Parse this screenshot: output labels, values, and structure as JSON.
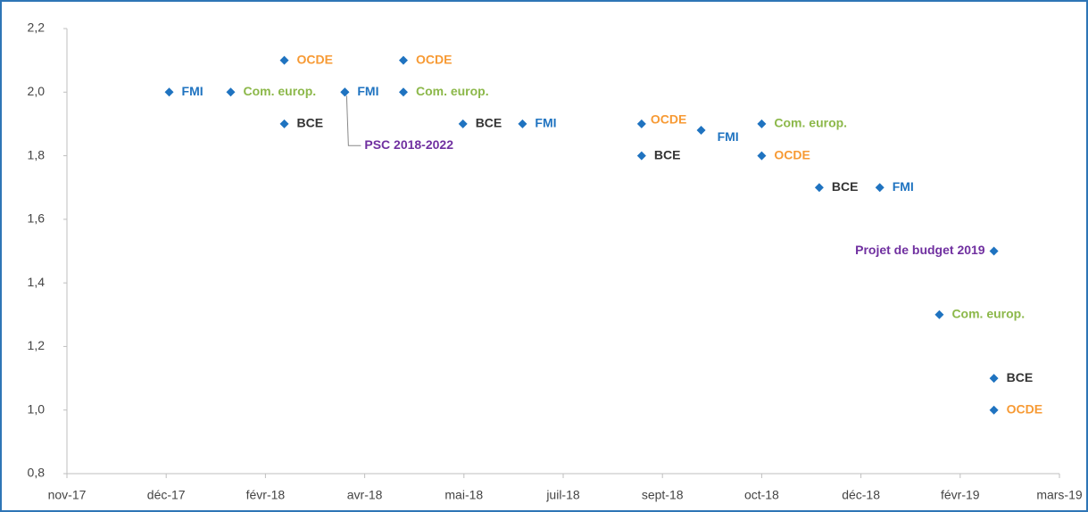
{
  "chart_data": {
    "type": "scatter",
    "marker_color": "#1f73c0",
    "xlim": [
      0,
      10
    ],
    "xticks": [
      {
        "value": 0,
        "label": "nov-17"
      },
      {
        "value": 1,
        "label": "déc-17"
      },
      {
        "value": 2,
        "label": "févr-18"
      },
      {
        "value": 3,
        "label": "avr-18"
      },
      {
        "value": 4,
        "label": "mai-18"
      },
      {
        "value": 5,
        "label": "juil-18"
      },
      {
        "value": 6,
        "label": "sept-18"
      },
      {
        "value": 7,
        "label": "oct-18"
      },
      {
        "value": 8,
        "label": "déc-18"
      },
      {
        "value": 9,
        "label": "févr-19"
      },
      {
        "value": 10,
        "label": "mars-19"
      }
    ],
    "ylim": [
      0.8,
      2.2
    ],
    "yticks": [
      {
        "value": 0.8,
        "label": "0,8"
      },
      {
        "value": 1.0,
        "label": "1,0"
      },
      {
        "value": 1.2,
        "label": "1,2"
      },
      {
        "value": 1.4,
        "label": "1,4"
      },
      {
        "value": 1.6,
        "label": "1,6"
      },
      {
        "value": 1.8,
        "label": "1,8"
      },
      {
        "value": 2.0,
        "label": "2,0"
      },
      {
        "value": 2.2,
        "label": "2,2"
      }
    ],
    "grid": false,
    "series": [
      {
        "name": "FMI",
        "color": "#1f73c0",
        "x": [
          1.03,
          2.8,
          4.59,
          6.39,
          8.19
        ],
        "values": [
          2.0,
          2.0,
          1.9,
          1.88,
          1.7
        ]
      },
      {
        "name": "OCDE",
        "color": "#f79a34",
        "x": [
          2.19,
          3.39,
          5.79,
          7.0,
          9.34
        ],
        "values": [
          2.1,
          2.1,
          1.9,
          1.8,
          1.0
        ]
      },
      {
        "name": "Com. europ.",
        "color": "#8cb84a",
        "x": [
          1.65,
          3.39,
          7.0,
          8.79
        ],
        "values": [
          2.0,
          2.0,
          1.9,
          1.3
        ]
      },
      {
        "name": "BCE",
        "color": "#333333",
        "x": [
          2.19,
          3.99,
          5.79,
          7.58,
          9.34
        ],
        "values": [
          1.9,
          1.9,
          1.8,
          1.7,
          1.1
        ]
      },
      {
        "name": "PSC 2018-2022",
        "color": "#7030a0",
        "x": [
          2.8
        ],
        "values": [
          2.0
        ]
      },
      {
        "name": "Projet de budget 2019",
        "color": "#7030a0",
        "x": [
          9.34
        ],
        "values": [
          1.5
        ]
      }
    ]
  }
}
